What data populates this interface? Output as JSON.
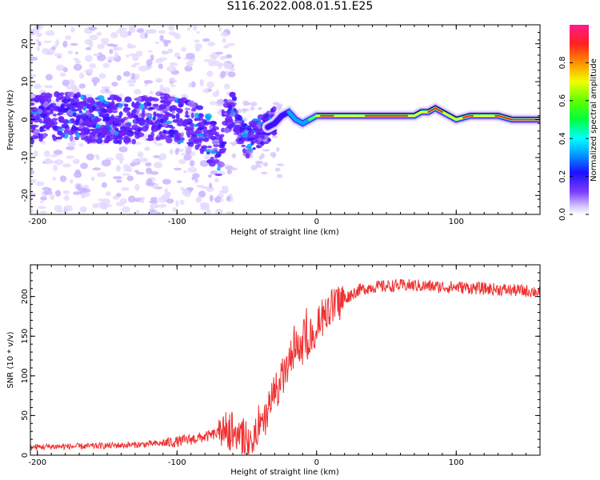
{
  "title": "S116.2022.008.01.51.E25",
  "colors": {
    "line": "#f03030",
    "ridge": "#000000",
    "axis": "#000000"
  },
  "chart_data": [
    {
      "type": "heatmap",
      "name": "spectrogram",
      "xlabel": "Height of straight line (km)",
      "ylabel": "Frequency (Hz)",
      "xlim": [
        -205,
        160
      ],
      "ylim": [
        -25,
        25
      ],
      "xticks": [
        -200,
        -100,
        0,
        100
      ],
      "xtick_labels": [
        "-200",
        "-100",
        "0",
        "100"
      ],
      "yticks": [
        -20,
        -10,
        0,
        10,
        20
      ],
      "ytick_labels": [
        "-20",
        "-10",
        "0",
        "10",
        "20"
      ],
      "colorbar": {
        "label": "Normalized spectral amplitude",
        "range": [
          0,
          1
        ],
        "ticks": [
          0.0,
          0.2,
          0.4,
          0.6,
          0.8
        ],
        "tick_labels": [
          "0.0",
          "0.2",
          "0.4",
          "0.6",
          "0.8"
        ]
      },
      "ridge": {
        "x": [
          -205,
          -190,
          -175,
          -160,
          -145,
          -130,
          -115,
          -100,
          -90,
          -80,
          -75,
          -70,
          -65,
          -60,
          -55,
          -50,
          -45,
          -40,
          -35,
          -30,
          -25,
          -20,
          -15,
          -10,
          -5,
          0,
          20,
          40,
          60,
          70,
          75,
          80,
          85,
          90,
          95,
          100,
          110,
          120,
          130,
          140,
          150,
          160
        ],
        "y": [
          0,
          1,
          1,
          0,
          0,
          0,
          1,
          0,
          -1,
          -3,
          -6,
          -9,
          0,
          3,
          -3,
          -6,
          -4,
          -3,
          -2,
          -1,
          1,
          2,
          0,
          -1,
          0,
          1,
          1,
          1,
          1,
          1,
          2,
          2,
          3,
          2,
          1,
          0,
          1,
          1,
          1,
          0,
          0,
          0
        ]
      }
    },
    {
      "type": "line",
      "name": "snr",
      "xlabel": "Height of straight line (km)",
      "ylabel": "SNR (10 * v/v)",
      "xlim": [
        -205,
        160
      ],
      "ylim": [
        0,
        240
      ],
      "xticks": [
        -200,
        -100,
        0,
        100
      ],
      "xtick_labels": [
        "-200",
        "-100",
        "0",
        "100"
      ],
      "yticks": [
        0,
        50,
        100,
        150,
        200
      ],
      "ytick_labels": [
        "0",
        "50",
        "100",
        "150",
        "200"
      ],
      "x": [
        -205,
        -190,
        -170,
        -150,
        -130,
        -110,
        -100,
        -90,
        -80,
        -70,
        -65,
        -60,
        -55,
        -50,
        -45,
        -40,
        -35,
        -30,
        -25,
        -20,
        -15,
        -10,
        -5,
        0,
        5,
        10,
        15,
        20,
        25,
        30,
        40,
        50,
        60,
        70,
        80,
        90,
        100,
        110,
        120,
        130,
        140,
        150,
        160
      ],
      "y": [
        10,
        11,
        11,
        12,
        13,
        15,
        17,
        20,
        23,
        28,
        32,
        34,
        24,
        14,
        20,
        30,
        55,
        80,
        95,
        115,
        130,
        140,
        150,
        158,
        172,
        185,
        192,
        197,
        203,
        208,
        212,
        213,
        214,
        214,
        213,
        212,
        212,
        211,
        210,
        209,
        208,
        207,
        206
      ]
    }
  ]
}
